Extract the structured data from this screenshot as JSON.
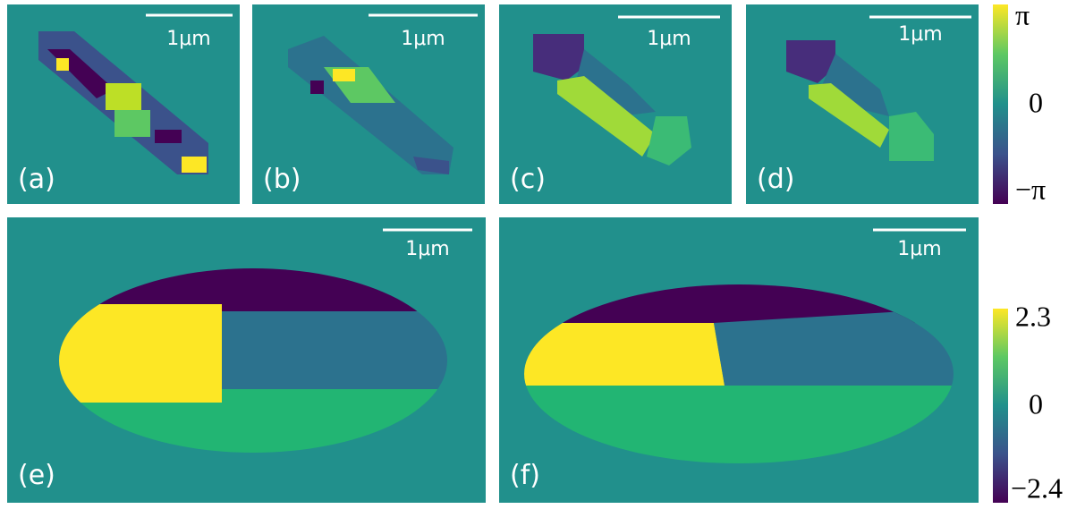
{
  "panels": [
    {
      "label": "(a)",
      "scale_bar": "1μm"
    },
    {
      "label": "(b)",
      "scale_bar": "1μm"
    },
    {
      "label": "(c)",
      "scale_bar": "1μm"
    },
    {
      "label": "(d)",
      "scale_bar": "1μm"
    },
    {
      "label": "(e)",
      "scale_bar": "1μm"
    },
    {
      "label": "(f)",
      "scale_bar": "1μm"
    }
  ],
  "colorbars": [
    {
      "ticks": [
        "π",
        "0",
        "−π"
      ]
    },
    {
      "ticks": [
        "2.3",
        "0",
        "−2.4"
      ]
    }
  ]
}
